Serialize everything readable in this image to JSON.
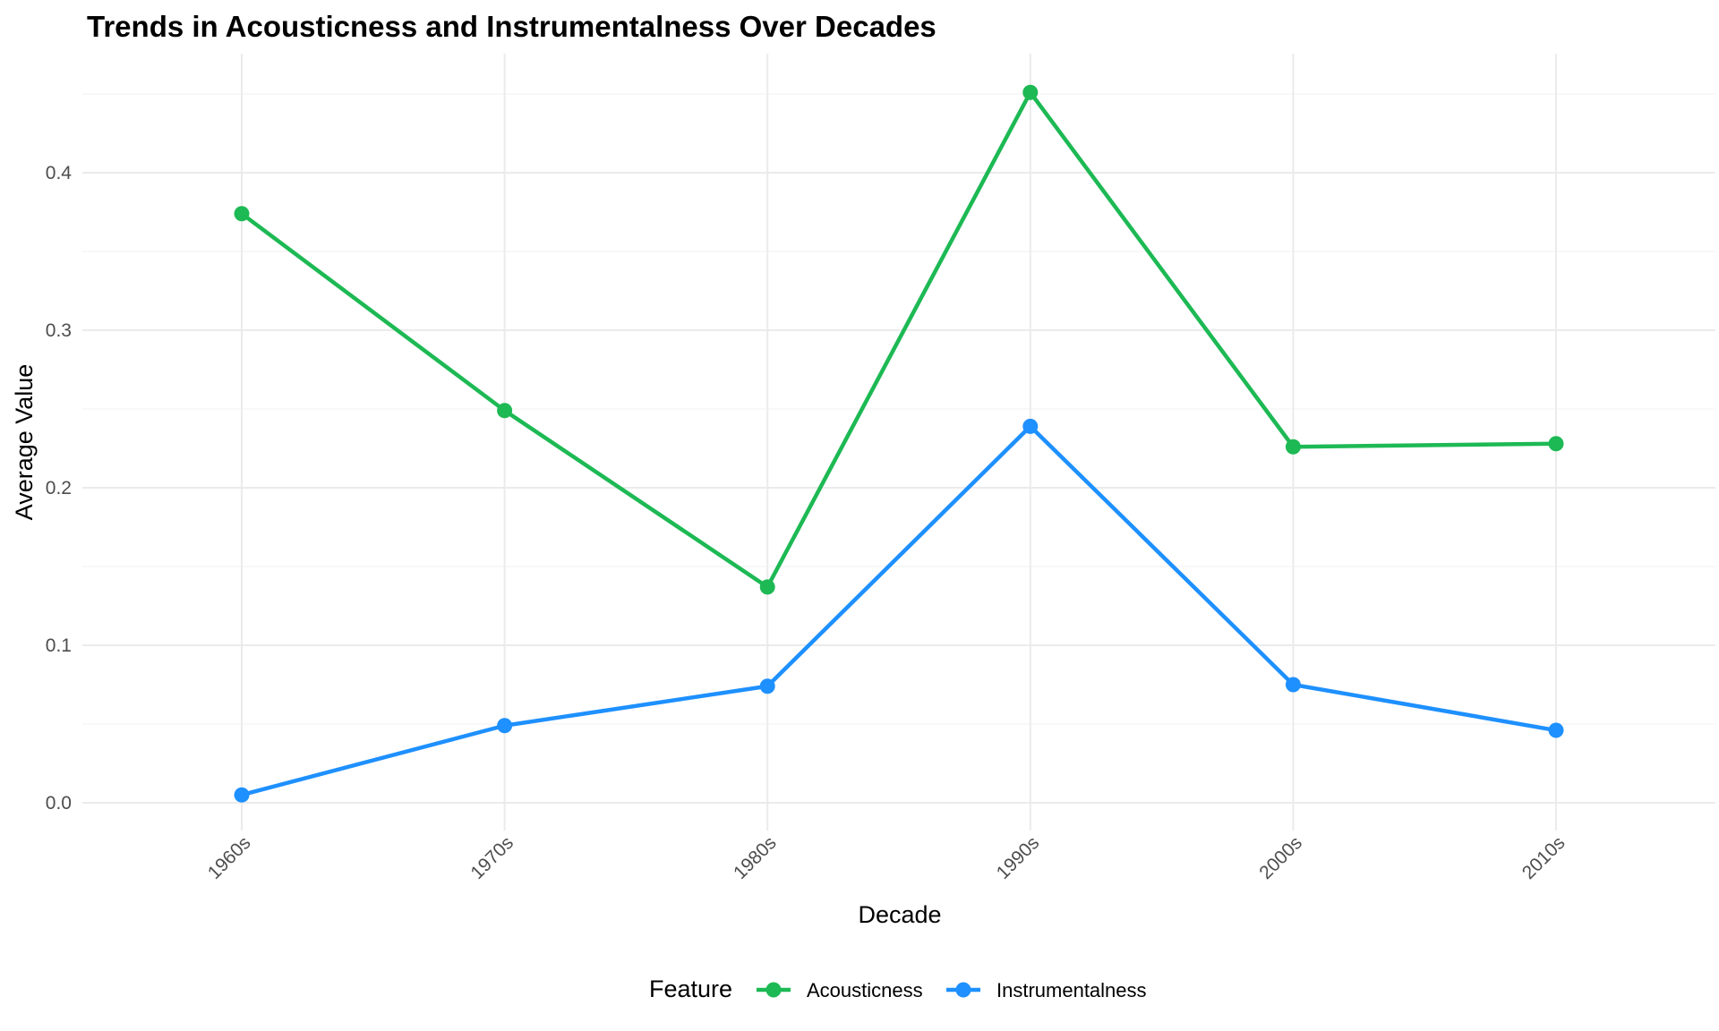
{
  "chart_data": {
    "type": "line",
    "title": "Trends in Acousticness and Instrumentalness Over Decades",
    "xlabel": "Decade",
    "ylabel": "Average Value",
    "categories": [
      "1960s",
      "1970s",
      "1980s",
      "1990s",
      "2000s",
      "2010s"
    ],
    "y_ticks": [
      "0.0",
      "0.1",
      "0.2",
      "0.3",
      "0.4"
    ],
    "ylim": [
      -0.018,
      0.47
    ],
    "grid": true,
    "legend_position": "bottom",
    "legend_title": "Feature",
    "series": [
      {
        "name": "Acousticness",
        "color": "#1db954",
        "values": [
          0.374,
          0.249,
          0.137,
          0.451,
          0.226,
          0.228
        ]
      },
      {
        "name": "Instrumentalness",
        "color": "#1e90ff",
        "values": [
          0.005,
          0.049,
          0.074,
          0.239,
          0.075,
          0.046
        ]
      }
    ]
  }
}
